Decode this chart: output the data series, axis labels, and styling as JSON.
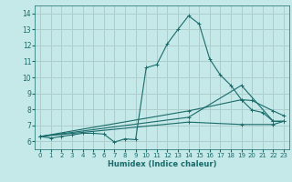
{
  "xlabel": "Humidex (Indice chaleur)",
  "xlim": [
    -0.5,
    23.5
  ],
  "ylim": [
    5.5,
    14.5
  ],
  "yticks": [
    6,
    7,
    8,
    9,
    10,
    11,
    12,
    13,
    14
  ],
  "xticks": [
    0,
    1,
    2,
    3,
    4,
    5,
    6,
    7,
    8,
    9,
    10,
    11,
    12,
    13,
    14,
    15,
    16,
    17,
    18,
    19,
    20,
    21,
    22,
    23
  ],
  "bg_color": "#c5e8e8",
  "grid_color": "#aecece",
  "line_color": "#1a6b6b",
  "lines": [
    {
      "x": [
        0,
        1,
        2,
        3,
        4,
        5,
        6,
        7,
        8,
        9,
        10,
        11,
        12,
        13,
        14,
        15,
        16,
        17,
        18,
        19,
        20,
        21,
        22,
        23
      ],
      "y": [
        6.3,
        6.2,
        6.3,
        6.4,
        6.5,
        6.5,
        6.45,
        5.95,
        6.15,
        6.1,
        10.6,
        10.8,
        12.1,
        13.0,
        13.85,
        13.35,
        11.15,
        10.15,
        9.5,
        8.6,
        7.95,
        7.8,
        7.25,
        7.25
      ]
    },
    {
      "x": [
        0,
        14,
        19,
        22,
        23
      ],
      "y": [
        6.3,
        7.5,
        9.5,
        7.25,
        7.25
      ]
    },
    {
      "x": [
        0,
        14,
        19,
        20,
        22,
        23
      ],
      "y": [
        6.3,
        7.9,
        8.6,
        8.55,
        7.9,
        7.6
      ]
    },
    {
      "x": [
        0,
        14,
        19,
        22,
        23
      ],
      "y": [
        6.3,
        7.2,
        7.05,
        7.05,
        7.25
      ]
    }
  ]
}
